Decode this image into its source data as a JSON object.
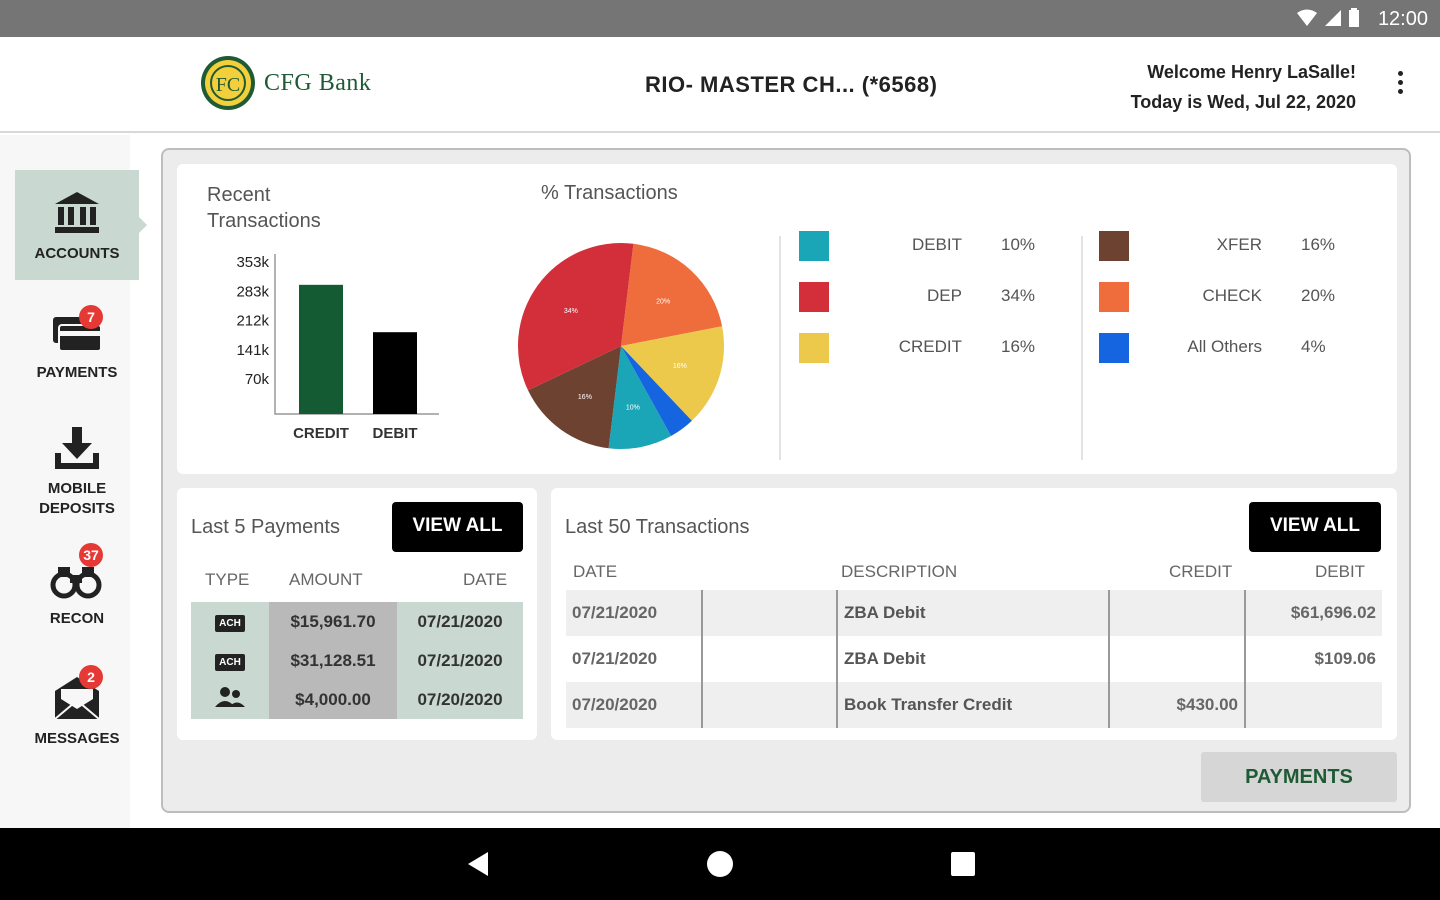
{
  "status_bar": {
    "time": "12:00"
  },
  "header": {
    "logo_text": "CFG Bank",
    "account_title": "RIO- MASTER CH...  (*6568)",
    "welcome": "Welcome Henry LaSalle!",
    "date_line": "Today is Wed, Jul 22, 2020"
  },
  "sidebar": {
    "items": [
      {
        "label": "ACCOUNTS",
        "badge": ""
      },
      {
        "label": "PAYMENTS",
        "badge": "7"
      },
      {
        "label": "MOBILE DEPOSITS",
        "badge": ""
      },
      {
        "label": "RECON",
        "badge": "37"
      },
      {
        "label": "MESSAGES",
        "badge": "2"
      }
    ]
  },
  "recent": {
    "title_line1": "Recent",
    "title_line2": "Transactions"
  },
  "pie_title": "% Transactions",
  "chart_data": [
    {
      "type": "bar",
      "title": "Recent Transactions",
      "categories": [
        "CREDIT",
        "DEBIT"
      ],
      "values": [
        300000,
        190000
      ],
      "y_ticks": [
        "353k",
        "283k",
        "212k",
        "141k",
        "70k"
      ],
      "ylim": [
        0,
        353000
      ],
      "colors": [
        "#145a32",
        "#000000"
      ]
    },
    {
      "type": "pie",
      "title": "% Transactions",
      "slices": [
        {
          "label": "DEBIT",
          "value": 10,
          "color": "#1aa6b7"
        },
        {
          "label": "DEP",
          "value": 34,
          "color": "#d32f3a"
        },
        {
          "label": "CREDIT",
          "value": 16,
          "color": "#ecc94b"
        },
        {
          "label": "XFER",
          "value": 16,
          "color": "#6d4231"
        },
        {
          "label": "CHECK",
          "value": 20,
          "color": "#ef6c3c"
        },
        {
          "label": "All Others",
          "value": 4,
          "color": "#1565e0"
        }
      ]
    }
  ],
  "legend": [
    {
      "label": "DEBIT",
      "pct": "10%",
      "color": "#1aa6b7"
    },
    {
      "label": "DEP",
      "pct": "34%",
      "color": "#d32f3a"
    },
    {
      "label": "CREDIT",
      "pct": "16%",
      "color": "#ecc94b"
    },
    {
      "label": "XFER",
      "pct": "16%",
      "color": "#6d4231"
    },
    {
      "label": "CHECK",
      "pct": "20%",
      "color": "#ef6c3c"
    },
    {
      "label": "All Others",
      "pct": "4%",
      "color": "#1565e0"
    }
  ],
  "payments_card": {
    "title": "Last 5 Payments",
    "view_all": "VIEW ALL",
    "col_type": "TYPE",
    "col_amount": "AMOUNT",
    "col_date": "DATE",
    "rows": [
      {
        "type": "ACH",
        "amount": "$15,961.70",
        "date": "07/21/2020"
      },
      {
        "type": "ACH",
        "amount": "$31,128.51",
        "date": "07/21/2020"
      },
      {
        "type": "people",
        "amount": "$4,000.00",
        "date": "07/20/2020"
      }
    ]
  },
  "txn_card": {
    "title": "Last 50 Transactions",
    "view_all": "VIEW ALL",
    "col_date": "DATE",
    "col_desc": "DESCRIPTION",
    "col_credit": "CREDIT",
    "col_debit": "DEBIT",
    "rows": [
      {
        "date": "07/21/2020",
        "desc": "ZBA Debit",
        "credit": "",
        "debit": "$61,696.02"
      },
      {
        "date": "07/21/2020",
        "desc": "ZBA Debit",
        "credit": "",
        "debit": "$109.06"
      },
      {
        "date": "07/20/2020",
        "desc": "Book Transfer Credit",
        "credit": "$430.00",
        "debit": ""
      }
    ]
  },
  "payments_button": "PAYMENTS",
  "colors": {
    "brand_green": "#1e5a34",
    "active_nav": "#c9d9d2",
    "badge_red": "#e53935"
  }
}
